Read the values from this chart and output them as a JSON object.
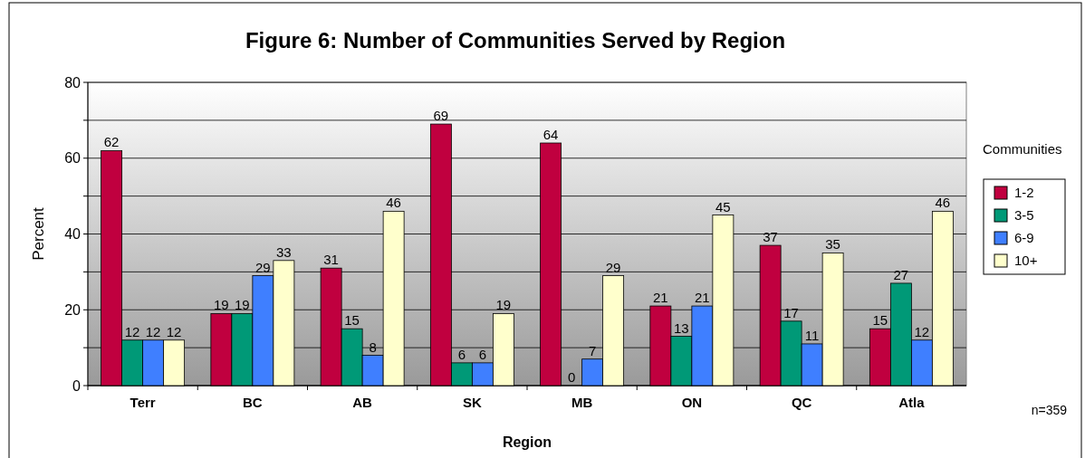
{
  "chart_data": {
    "type": "bar",
    "title": "Figure 6:  Number of Communities Served by Region",
    "xlabel": "Region",
    "ylabel": "Percent",
    "legend_title": "Communities",
    "annotations": [
      "n=359"
    ],
    "categories": [
      "Terr",
      "BC",
      "AB",
      "SK",
      "MB",
      "ON",
      "QC",
      "Atla"
    ],
    "series": [
      {
        "name": "1-2",
        "color": "#c0003f",
        "values": [
          62,
          19,
          31,
          69,
          64,
          21,
          37,
          15
        ]
      },
      {
        "name": "3-5",
        "color": "#009977",
        "values": [
          12,
          19,
          15,
          6,
          0,
          13,
          17,
          27
        ]
      },
      {
        "name": "6-9",
        "color": "#3f7fff",
        "values": [
          12,
          29,
          8,
          6,
          7,
          21,
          11,
          12
        ]
      },
      {
        "name": "10+",
        "color": "#ffffcc",
        "values": [
          12,
          33,
          46,
          19,
          29,
          45,
          35,
          46
        ]
      }
    ],
    "ylim": [
      0,
      80
    ],
    "yticks": [
      0,
      {
        "value": 10,
        "label": null
      },
      20,
      {
        "value": 30,
        "label": null
      },
      40,
      {
        "value": 50,
        "label": null
      },
      60,
      {
        "value": 70,
        "label": null
      },
      80
    ],
    "grid": "y",
    "legend": "right",
    "data_labels": true
  }
}
